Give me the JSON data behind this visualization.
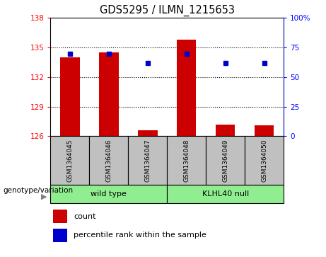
{
  "title": "GDS5295 / ILMN_1215653",
  "samples": [
    "GSM1364045",
    "GSM1364046",
    "GSM1364047",
    "GSM1364048",
    "GSM1364049",
    "GSM1364050"
  ],
  "red_values": [
    134.0,
    134.5,
    126.6,
    135.8,
    127.2,
    127.1
  ],
  "blue_percentiles": [
    70,
    70,
    62,
    70,
    62,
    62
  ],
  "ylim_left": [
    126,
    138
  ],
  "ylim_right": [
    0,
    100
  ],
  "yticks_left": [
    126,
    129,
    132,
    135,
    138
  ],
  "yticks_right": [
    0,
    25,
    50,
    75,
    100
  ],
  "ytick_labels_right": [
    "0",
    "25",
    "50",
    "75",
    "100%"
  ],
  "group1_label": "wild type",
  "group2_label": "KLHL40 null",
  "group_bg_color": "#90EE90",
  "sample_bg_color": "#C0C0C0",
  "bar_color": "#CC0000",
  "dot_color": "#0000CC",
  "base_value": 126,
  "legend_count_label": "count",
  "legend_percentile_label": "percentile rank within the sample",
  "genotype_label": "genotype/variation",
  "grid_lines": [
    129,
    132,
    135
  ],
  "bar_width": 0.5
}
